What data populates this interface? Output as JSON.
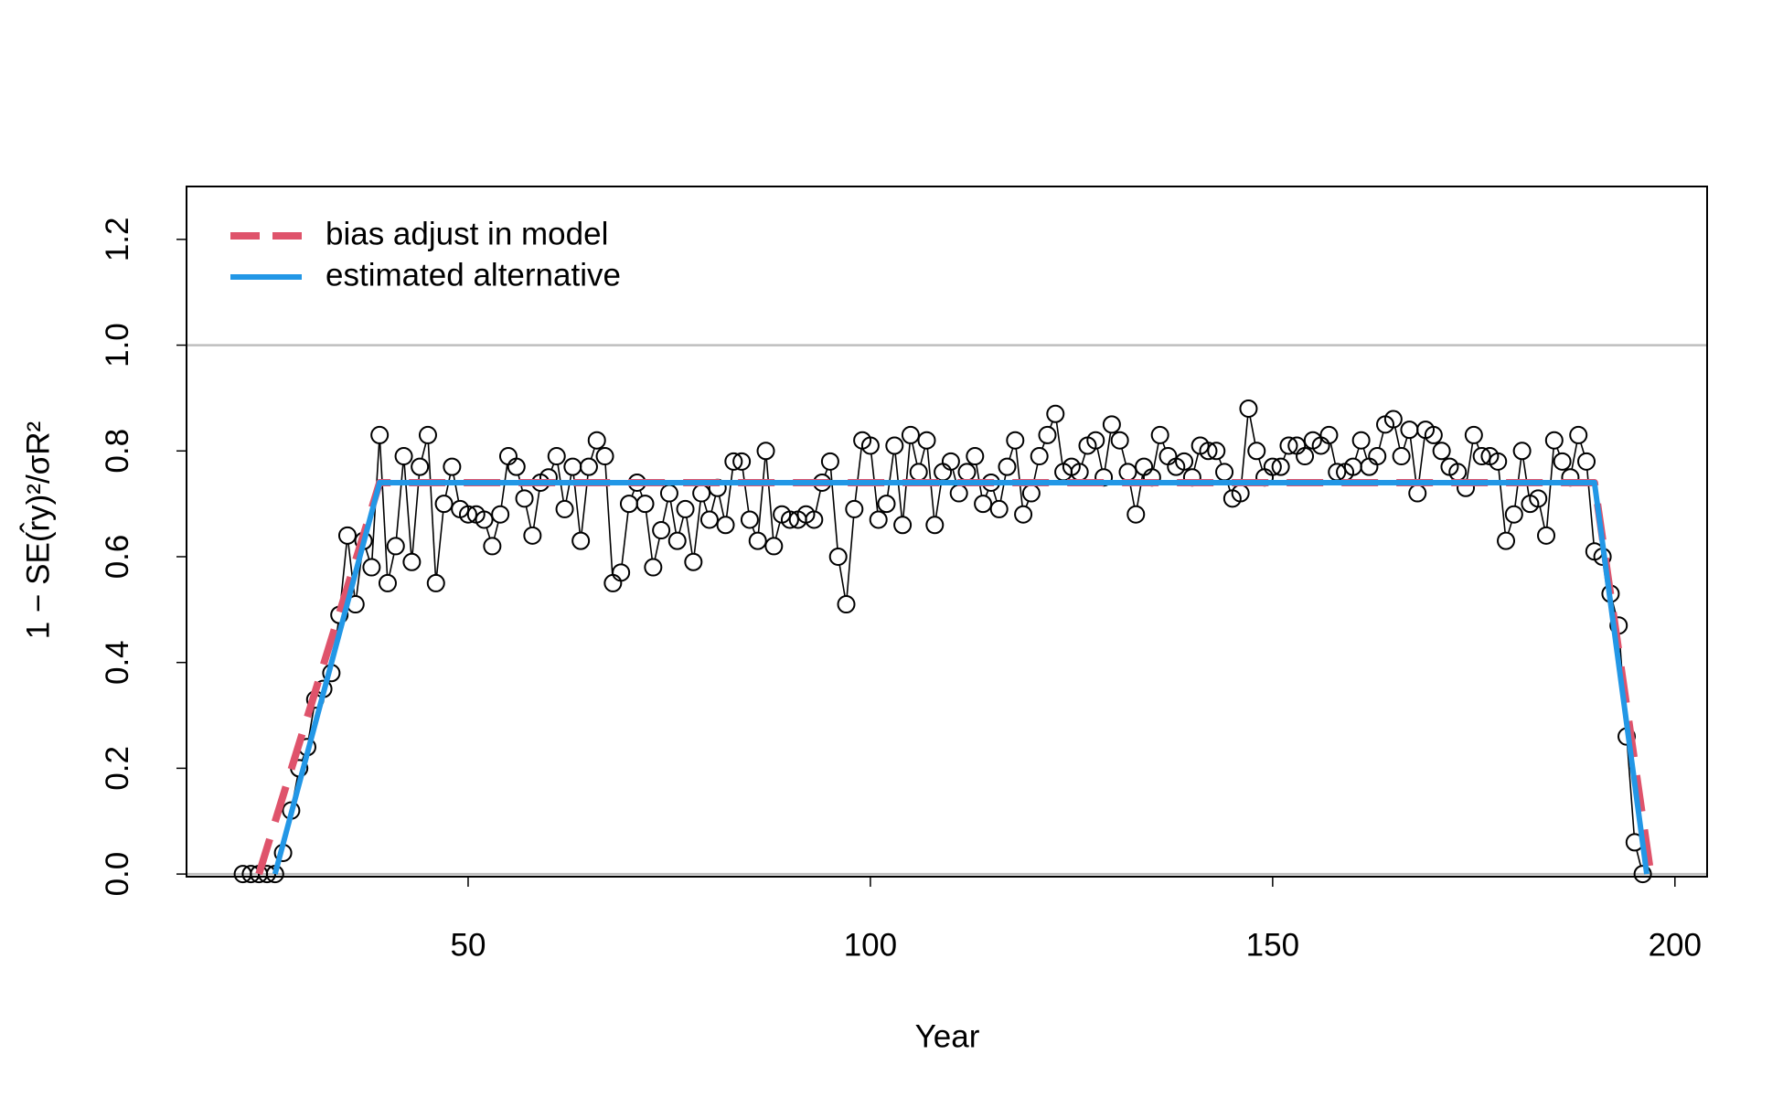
{
  "chart_data": {
    "type": "line",
    "xlabel": "Year",
    "ylabel": "1 − SE(r̂y)²/σR²",
    "xlim": [
      15,
      204
    ],
    "ylim": [
      -0.005,
      1.3
    ],
    "xticks": [
      50,
      100,
      150,
      200
    ],
    "yticks": [
      {
        "value": 0,
        "label": "0.0"
      },
      0.2,
      0.4,
      0.6,
      0.8,
      {
        "value": 1,
        "label": "1.0"
      },
      1.2
    ],
    "hlines": [
      0,
      1
    ],
    "hline_color": "#bebebe",
    "legend_position": "top-left",
    "points": {
      "color": "#000000",
      "x": [
        22,
        23,
        24,
        25,
        26,
        27,
        28,
        29,
        30,
        31,
        32,
        33,
        34,
        35,
        36,
        37,
        38,
        39,
        40,
        41,
        42,
        43,
        44,
        45,
        46,
        47,
        48,
        49,
        50,
        51,
        52,
        53,
        54,
        55,
        56,
        57,
        58,
        59,
        60,
        61,
        62,
        63,
        64,
        65,
        66,
        67,
        68,
        69,
        70,
        71,
        72,
        73,
        74,
        75,
        76,
        77,
        78,
        79,
        80,
        81,
        82,
        83,
        84,
        85,
        86,
        87,
        88,
        89,
        90,
        91,
        92,
        93,
        94,
        95,
        96,
        97,
        98,
        99,
        100,
        101,
        102,
        103,
        104,
        105,
        106,
        107,
        108,
        109,
        110,
        111,
        112,
        113,
        114,
        115,
        116,
        117,
        118,
        119,
        120,
        121,
        122,
        123,
        124,
        125,
        126,
        127,
        128,
        129,
        130,
        131,
        132,
        133,
        134,
        135,
        136,
        137,
        138,
        139,
        140,
        141,
        142,
        143,
        144,
        145,
        146,
        147,
        148,
        149,
        150,
        151,
        152,
        153,
        154,
        155,
        156,
        157,
        158,
        159,
        160,
        161,
        162,
        163,
        164,
        165,
        166,
        167,
        168,
        169,
        170,
        171,
        172,
        173,
        174,
        175,
        176,
        177,
        178,
        179,
        180,
        181,
        182,
        183,
        184,
        185,
        186,
        187,
        188,
        189,
        190,
        191,
        192,
        193,
        194,
        195,
        196
      ],
      "values": [
        0,
        0,
        0,
        0,
        0,
        0.04,
        0.12,
        0.2,
        0.24,
        0.33,
        0.35,
        0.38,
        0.49,
        0.64,
        0.51,
        0.63,
        0.58,
        0.83,
        0.55,
        0.62,
        0.79,
        0.59,
        0.77,
        0.83,
        0.55,
        0.7,
        0.77,
        0.69,
        0.68,
        0.68,
        0.67,
        0.62,
        0.68,
        0.79,
        0.77,
        0.71,
        0.64,
        0.74,
        0.75,
        0.79,
        0.69,
        0.77,
        0.63,
        0.77,
        0.82,
        0.79,
        0.55,
        0.57,
        0.7,
        0.74,
        0.7,
        0.58,
        0.65,
        0.72,
        0.63,
        0.69,
        0.59,
        0.72,
        0.67,
        0.73,
        0.66,
        0.78,
        0.78,
        0.67,
        0.63,
        0.8,
        0.62,
        0.68,
        0.67,
        0.67,
        0.68,
        0.67,
        0.74,
        0.78,
        0.6,
        0.51,
        0.69,
        0.82,
        0.81,
        0.67,
        0.7,
        0.81,
        0.66,
        0.83,
        0.76,
        0.82,
        0.66,
        0.76,
        0.78,
        0.72,
        0.76,
        0.79,
        0.7,
        0.74,
        0.69,
        0.77,
        0.82,
        0.68,
        0.72,
        0.79,
        0.83,
        0.87,
        0.76,
        0.77,
        0.76,
        0.81,
        0.82,
        0.75,
        0.85,
        0.82,
        0.76,
        0.68,
        0.77,
        0.75,
        0.83,
        0.79,
        0.77,
        0.78,
        0.75,
        0.81,
        0.8,
        0.8,
        0.76,
        0.71,
        0.72,
        0.88,
        0.8,
        0.75,
        0.77,
        0.77,
        0.81,
        0.81,
        0.79,
        0.82,
        0.81,
        0.83,
        0.76,
        0.76,
        0.77,
        0.82,
        0.77,
        0.79,
        0.85,
        0.86,
        0.79,
        0.84,
        0.72,
        0.84,
        0.83,
        0.8,
        0.77,
        0.76,
        0.73,
        0.83,
        0.79,
        0.79,
        0.78,
        0.63,
        0.68,
        0.8,
        0.7,
        0.71,
        0.64,
        0.82,
        0.78,
        0.75,
        0.83,
        0.78,
        0.61,
        0.6,
        0.53,
        0.47,
        0.26,
        0.06,
        0
      ]
    },
    "series": [
      {
        "name": "bias adjust in model",
        "color": "#DF536B",
        "dashed": true,
        "x": [
          24,
          39,
          190,
          197
        ],
        "values": [
          0,
          0.74,
          0.74,
          0
        ]
      },
      {
        "name": "estimated alternative",
        "color": "#2297E6",
        "dashed": false,
        "x": [
          26,
          39,
          190,
          196.5
        ],
        "values": [
          0,
          0.74,
          0.74,
          0
        ]
      }
    ]
  }
}
